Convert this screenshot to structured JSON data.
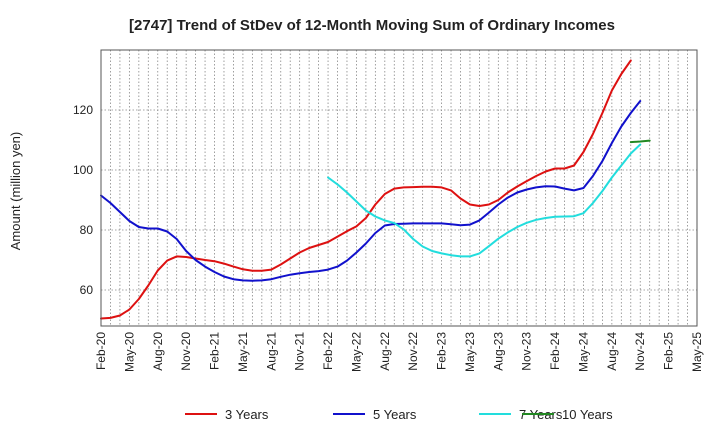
{
  "chart_data": {
    "type": "line",
    "title": "[2747]  Trend of StDev of 12-Month Moving Sum of Ordinary Incomes",
    "xlabel": "",
    "ylabel": "Amount (million yen)",
    "x_ticks": [
      "Feb-20",
      "May-20",
      "Aug-20",
      "Nov-20",
      "Feb-21",
      "May-21",
      "Aug-21",
      "Nov-21",
      "Feb-22",
      "May-22",
      "Aug-22",
      "Nov-22",
      "Feb-23",
      "May-23",
      "Aug-23",
      "Nov-23",
      "Feb-24",
      "May-24",
      "Aug-24",
      "Nov-24",
      "Feb-25",
      "May-25"
    ],
    "ylim": [
      48,
      140
    ],
    "y_ticks": [
      60,
      80,
      100,
      120
    ],
    "grid": true,
    "legend_position": "bottom",
    "series": [
      {
        "name": "3 Years",
        "color": "#dd1111",
        "start_index": 0,
        "values": [
          50.5,
          50.7,
          51.5,
          53.5,
          57,
          61.5,
          66.5,
          69.8,
          71.2,
          71,
          70.5,
          70,
          69.6,
          68.8,
          67.8,
          66.9,
          66.4,
          66.4,
          66.8,
          68.5,
          70.5,
          72.5,
          74,
          75,
          76,
          77.8,
          79.6,
          81.2,
          84,
          88.5,
          92,
          93.8,
          94.2,
          94.3,
          94.4,
          94.4,
          94.2,
          93.2,
          90.5,
          88.5,
          88,
          88.5,
          90,
          92.5,
          94.5,
          96.3,
          98,
          99.5,
          100.5,
          100.5,
          101.5,
          106,
          112,
          119,
          126.5,
          132,
          136.5
        ]
      },
      {
        "name": "5 Years",
        "color": "#1111cc",
        "start_index": 0,
        "values": [
          91.5,
          89,
          86,
          83,
          81,
          80.5,
          80.5,
          79.5,
          77,
          73,
          70,
          67.8,
          66,
          64.5,
          63.6,
          63.2,
          63.1,
          63.2,
          63.6,
          64.4,
          65.1,
          65.6,
          66,
          66.3,
          66.8,
          67.8,
          69.8,
          72.5,
          75.5,
          79,
          81.5,
          82,
          82.1,
          82.2,
          82.2,
          82.2,
          82.2,
          81.9,
          81.6,
          81.8,
          83.2,
          85.8,
          88.5,
          90.8,
          92.5,
          93.5,
          94.2,
          94.6,
          94.5,
          93.8,
          93.2,
          94,
          98,
          103,
          109,
          114.5,
          119,
          123
        ]
      },
      {
        "name": "7 Years",
        "color": "#22dddd",
        "start_index": 24,
        "values": [
          97.5,
          95.2,
          92.5,
          89.5,
          86.5,
          84.5,
          83.2,
          82.3,
          80.2,
          77,
          74.5,
          73,
          72.2,
          71.6,
          71.2,
          71.2,
          72.2,
          74.6,
          77.1,
          79.2,
          81,
          82.4,
          83.4,
          84,
          84.4,
          84.5,
          84.6,
          85.6,
          89,
          93,
          97.5,
          101.5,
          105.5,
          108.5
        ]
      },
      {
        "name": "10 Years",
        "color": "#228822",
        "start_index": 56,
        "values": [
          109.3,
          109.5,
          109.8
        ]
      }
    ]
  }
}
